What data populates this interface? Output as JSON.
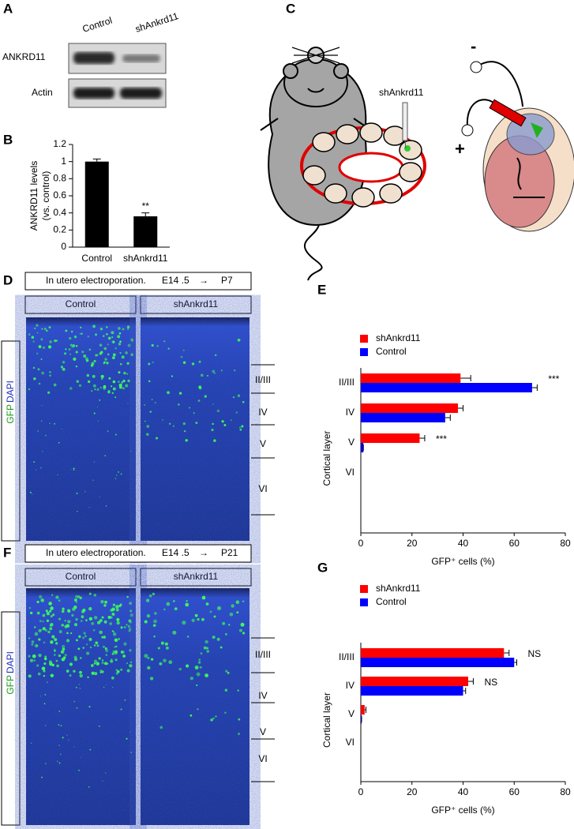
{
  "panels": {
    "A": {
      "label": "A",
      "lanes": [
        "Control",
        "shAnkrd11"
      ],
      "rows": [
        "ANKRD11",
        "Actin"
      ]
    },
    "C": {
      "label": "C",
      "injection": "shAnkrd11",
      "electrodes": [
        "-",
        "+"
      ]
    },
    "D": {
      "label": "D",
      "header": [
        "In utero electroporation.",
        "E14 .5",
        "→",
        "P7"
      ],
      "columns": [
        "Control",
        "shAnkrd11"
      ],
      "stain": [
        "GFP",
        "DAPI"
      ],
      "layers": [
        "II/III",
        "IV",
        "V",
        "VI"
      ]
    },
    "F": {
      "label": "F",
      "header": [
        "In utero electroporation.",
        "E14 .5",
        "→",
        "P21"
      ],
      "columns": [
        "Control",
        "shAnkrd11"
      ],
      "stain": [
        "GFP",
        "DAPI"
      ],
      "layers": [
        "II/III",
        "IV",
        "V",
        "VI"
      ]
    }
  },
  "chart_data": [
    {
      "type": "bar",
      "label": "B",
      "categories": [
        "Control",
        "shAnkrd11"
      ],
      "values": [
        1.0,
        0.36
      ],
      "errors": [
        0.03,
        0.04
      ],
      "color": "#000000",
      "ylim": [
        0,
        1.2
      ],
      "yticks": [
        0,
        0.2,
        0.4,
        0.6,
        0.8,
        1,
        1.2
      ],
      "ylabel": [
        "ANKRD11 levels",
        "(vs. control)"
      ],
      "annotations": [
        {
          "text": "**",
          "category": "shAnkrd11"
        }
      ]
    },
    {
      "type": "barh",
      "label": "E",
      "ylabel": "Cortical layer",
      "xlabel": "GFP⁺ cells (%)",
      "categories": [
        "II/III",
        "IV",
        "V",
        "VI"
      ],
      "series": [
        {
          "name": "shAnkrd11",
          "color": "#ff0000",
          "values": [
            39,
            38,
            23,
            0
          ],
          "errors": [
            4,
            2,
            2,
            0
          ]
        },
        {
          "name": "Control",
          "color": "#0000ff",
          "values": [
            67,
            33,
            1,
            0
          ],
          "errors": [
            2,
            2,
            0,
            0
          ]
        }
      ],
      "xlim": [
        0,
        80
      ],
      "xticks": [
        0,
        20,
        40,
        60,
        80
      ],
      "legend": "top-left",
      "annotations": [
        {
          "text": "***",
          "category": "II/III"
        },
        {
          "text": "***",
          "category": "V"
        }
      ]
    },
    {
      "type": "barh",
      "label": "G",
      "ylabel": "Cortical layer",
      "xlabel": "GFP⁺ cells (%)",
      "categories": [
        "II/III",
        "IV",
        "V",
        "VI"
      ],
      "series": [
        {
          "name": "shAnkrd11",
          "color": "#ff0000",
          "values": [
            56,
            42,
            1.5,
            0
          ],
          "errors": [
            2,
            2,
            0.5,
            0
          ]
        },
        {
          "name": "Control",
          "color": "#0000ff",
          "values": [
            60,
            40,
            0.3,
            0
          ],
          "errors": [
            1,
            1,
            0,
            0
          ]
        }
      ],
      "xlim": [
        0,
        80
      ],
      "xticks": [
        0,
        20,
        40,
        60,
        80
      ],
      "legend": "top-left",
      "annotations": [
        {
          "text": "NS",
          "category": "II/III"
        },
        {
          "text": "NS",
          "category": "IV"
        }
      ]
    }
  ]
}
